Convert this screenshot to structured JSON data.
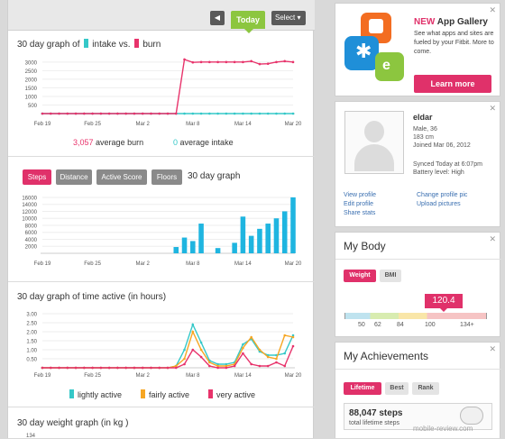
{
  "topbar": {
    "prev_icon": "chevron-left-icon",
    "today_label": "Today",
    "select_label": "Select ▾"
  },
  "intake_burn": {
    "title_prefix": "30 day graph of",
    "title_intake": "intake vs.",
    "title_burn": "burn",
    "burn_avg_value": "3,057",
    "burn_avg_label": "average burn",
    "intake_avg_value": "0",
    "intake_avg_label": "average intake"
  },
  "steps": {
    "tabs": [
      "Steps",
      "Distance",
      "Active Score",
      "Floors"
    ],
    "title": "30 day graph"
  },
  "time_active": {
    "title": "30 day graph of time active (in hours)",
    "legend": [
      "lightly active",
      "fairly active",
      "very active"
    ]
  },
  "weight": {
    "title": "30 day weight graph (in kg )",
    "first_tick": "134"
  },
  "gallery": {
    "new_label": "NEW",
    "title": "App Gallery",
    "description": "See what apps and sites are fueled by your Fitbit. More to come.",
    "button": "Learn more",
    "close": "✕"
  },
  "profile": {
    "name": "eldar",
    "details": [
      "Male, 36",
      "183 cm",
      "Joined Mar 06, 2012"
    ],
    "synced": "Synced Today at 6:07pm",
    "battery": "Battery level: High",
    "links_left": [
      "View profile",
      "Edit profile",
      "Share stats"
    ],
    "links_right": [
      "Change profile pic",
      "Upload pictures"
    ],
    "close": "✕"
  },
  "body": {
    "title": "My Body",
    "tabs": [
      "Weight",
      "BMI"
    ],
    "value": "120.4",
    "ticks": [
      "50",
      "62",
      "84",
      "100",
      "134+"
    ],
    "close": "✕"
  },
  "achievements": {
    "title": "My Achievements",
    "tabs": [
      "Lifetime",
      "Best",
      "Rank"
    ],
    "steps_value": "88,047 steps",
    "steps_label": "total lifetime steps",
    "watermark": "mobile-review.com",
    "close": "✕"
  },
  "colors": {
    "intake": "#35c8c8",
    "burn": "#e8336b",
    "steps": "#1fb5e0",
    "fairly": "#f6a623",
    "green": "#8cc63f",
    "pink": "#e0316a"
  },
  "chart_data": [
    {
      "type": "line",
      "x": [
        "Feb 19",
        "Feb 20",
        "Feb 21",
        "Feb 22",
        "Feb 23",
        "Feb 24",
        "Feb 25",
        "Feb 26",
        "Feb 27",
        "Feb 28",
        "Feb 29",
        "Mar 1",
        "Mar 2",
        "Mar 3",
        "Mar 4",
        "Mar 5",
        "Mar 6",
        "Mar 7",
        "Mar 8",
        "Mar 9",
        "Mar 10",
        "Mar 11",
        "Mar 12",
        "Mar 13",
        "Mar 14",
        "Mar 15",
        "Mar 16",
        "Mar 17",
        "Mar 18",
        "Mar 19",
        "Mar 20"
      ],
      "series": [
        {
          "name": "intake",
          "values": [
            0,
            0,
            0,
            0,
            0,
            0,
            0,
            0,
            0,
            0,
            0,
            0,
            0,
            0,
            0,
            0,
            0,
            0,
            0,
            0,
            0,
            0,
            0,
            0,
            0,
            0,
            0,
            0,
            0,
            0,
            0
          ]
        },
        {
          "name": "burn",
          "values": [
            0,
            0,
            0,
            0,
            0,
            0,
            0,
            0,
            0,
            0,
            0,
            0,
            0,
            0,
            0,
            0,
            0,
            3150,
            2980,
            3000,
            3000,
            3000,
            3000,
            3000,
            3000,
            3050,
            2880,
            2900,
            3000,
            3050,
            3000
          ]
        }
      ],
      "yticks": [
        "3000",
        "2500",
        "2000",
        "1500",
        "1000",
        "500"
      ],
      "xticks": [
        "Feb 19",
        "Feb 25",
        "Mar 2",
        "Mar 8",
        "Mar 14",
        "Mar 20"
      ],
      "ylim": [
        0,
        3200
      ]
    },
    {
      "type": "bar",
      "x": [
        "Feb 19",
        "Feb 20",
        "Feb 21",
        "Feb 22",
        "Feb 23",
        "Feb 24",
        "Feb 25",
        "Feb 26",
        "Feb 27",
        "Feb 28",
        "Feb 29",
        "Mar 1",
        "Mar 2",
        "Mar 3",
        "Mar 4",
        "Mar 5",
        "Mar 6",
        "Mar 7",
        "Mar 8",
        "Mar 9",
        "Mar 10",
        "Mar 11",
        "Mar 12",
        "Mar 13",
        "Mar 14",
        "Mar 15",
        "Mar 16",
        "Mar 17",
        "Mar 18",
        "Mar 19",
        "Mar 20"
      ],
      "values": [
        0,
        0,
        0,
        0,
        0,
        0,
        0,
        0,
        0,
        0,
        0,
        0,
        0,
        0,
        0,
        0,
        1800,
        4500,
        3500,
        8500,
        0,
        1500,
        0,
        3000,
        10500,
        5000,
        7000,
        8500,
        10000,
        12000,
        16000
      ],
      "yticks": [
        "16000",
        "14000",
        "12000",
        "10000",
        "8000",
        "6000",
        "4000",
        "2000"
      ],
      "xticks": [
        "Feb 19",
        "Feb 25",
        "Mar 2",
        "Mar 8",
        "Mar 14",
        "Mar 20"
      ],
      "ylim": [
        0,
        16500
      ]
    },
    {
      "type": "line",
      "x": [
        "Feb 19",
        "Feb 20",
        "Feb 21",
        "Feb 22",
        "Feb 23",
        "Feb 24",
        "Feb 25",
        "Feb 26",
        "Feb 27",
        "Feb 28",
        "Feb 29",
        "Mar 1",
        "Mar 2",
        "Mar 3",
        "Mar 4",
        "Mar 5",
        "Mar 6",
        "Mar 7",
        "Mar 8",
        "Mar 9",
        "Mar 10",
        "Mar 11",
        "Mar 12",
        "Mar 13",
        "Mar 14",
        "Mar 15",
        "Mar 16",
        "Mar 17",
        "Mar 18",
        "Mar 19",
        "Mar 20"
      ],
      "series": [
        {
          "name": "lightly active",
          "values": [
            0,
            0,
            0,
            0,
            0,
            0,
            0,
            0,
            0,
            0,
            0,
            0,
            0,
            0,
            0,
            0,
            0.1,
            1.0,
            2.4,
            1.4,
            0.4,
            0.2,
            0.2,
            0.3,
            1.3,
            1.6,
            0.9,
            0.7,
            0.7,
            0.8,
            1.8
          ]
        },
        {
          "name": "fairly active",
          "values": [
            0,
            0,
            0,
            0,
            0,
            0,
            0,
            0,
            0,
            0,
            0,
            0,
            0,
            0,
            0,
            0,
            0.1,
            0.5,
            2.0,
            1.0,
            0.3,
            0.1,
            0.1,
            0.2,
            1.1,
            1.7,
            1.0,
            0.6,
            0.5,
            1.8,
            1.7
          ]
        },
        {
          "name": "very active",
          "values": [
            0,
            0,
            0,
            0,
            0,
            0,
            0,
            0,
            0,
            0,
            0,
            0,
            0,
            0,
            0,
            0,
            0,
            0.2,
            1.0,
            0.6,
            0.1,
            0,
            0,
            0.1,
            0.8,
            0.2,
            0.1,
            0.1,
            0.3,
            0.1,
            1.2
          ]
        }
      ],
      "yticks": [
        "3.00",
        "2.50",
        "2.00",
        "1.50",
        "1.00",
        "0.50"
      ],
      "xticks": [
        "Feb 19",
        "Feb 25",
        "Mar 2",
        "Mar 8",
        "Mar 14",
        "Mar 20"
      ],
      "ylim": [
        0,
        3.2
      ]
    }
  ]
}
